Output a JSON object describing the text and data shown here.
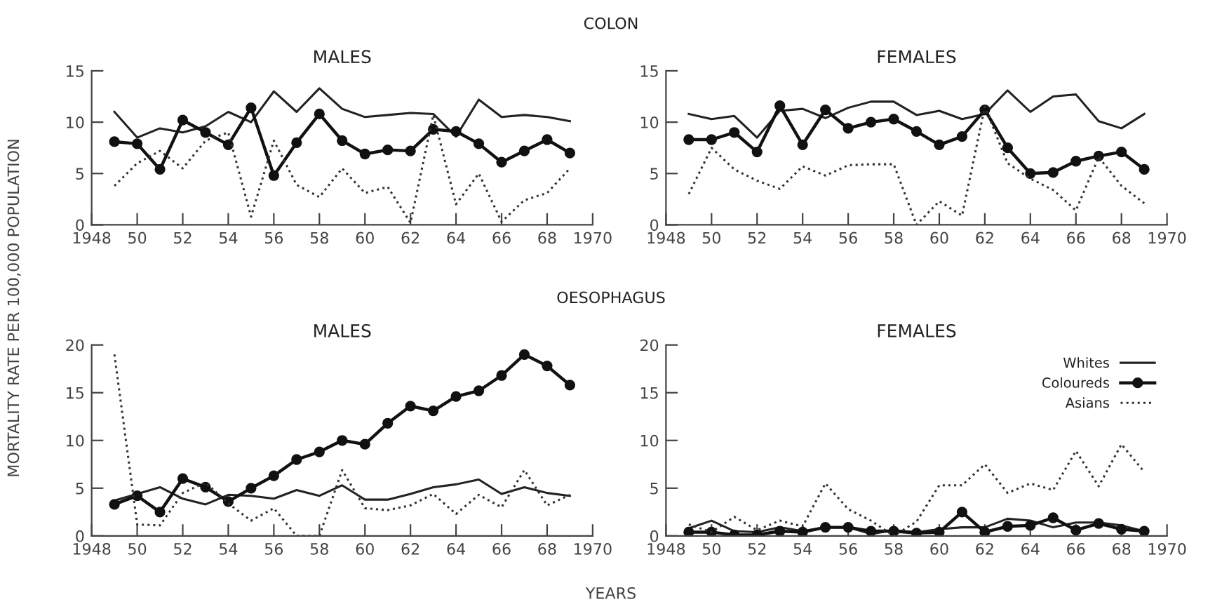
{
  "chart_data": [
    {
      "type": "line",
      "title": "MALES",
      "annotations": [
        "COLON"
      ],
      "ylabel": "MORTALITY RATE PER 100,000 POPULATION",
      "x": [
        1949,
        1950,
        1951,
        1952,
        1953,
        1954,
        1955,
        1956,
        1957,
        1958,
        1959,
        1960,
        1961,
        1962,
        1963,
        1964,
        1965,
        1966,
        1967,
        1968,
        1969
      ],
      "xlim": [
        1948,
        1970
      ],
      "xticks": [
        1948,
        {
          "value": 1950,
          "label": "50"
        },
        {
          "value": 1952,
          "label": "52"
        },
        {
          "value": 1954,
          "label": "54"
        },
        {
          "value": 1956,
          "label": "56"
        },
        {
          "value": 1958,
          "label": "58"
        },
        {
          "value": 1960,
          "label": "60"
        },
        {
          "value": 1962,
          "label": "62"
        },
        {
          "value": 1964,
          "label": "64"
        },
        {
          "value": 1966,
          "label": "66"
        },
        {
          "value": 1968,
          "label": "68"
        },
        1970
      ],
      "ylim": [
        0,
        15
      ],
      "yticks": [
        0,
        5,
        10,
        15
      ],
      "grid": false,
      "legend": false,
      "series": [
        {
          "color": "#222222",
          "line_style": "solid",
          "marker": "none",
          "values": [
            11,
            8.5,
            9.4,
            9,
            9.6,
            11,
            10,
            13,
            11,
            13.3,
            11.3,
            10.5,
            10.7,
            10.9,
            10.8,
            8.6,
            12.2,
            10.5,
            10.7,
            10.5,
            10.1
          ]
        },
        {
          "color": "#111111",
          "line_style": "solid",
          "marker": "circle",
          "values": [
            8.1,
            7.9,
            5.4,
            10.2,
            9,
            7.8,
            11.4,
            4.8,
            8,
            10.8,
            8.2,
            6.9,
            7.3,
            7.2,
            9.3,
            9.1,
            7.9,
            6.1,
            7.2,
            8.3,
            7
          ]
        },
        {
          "color": "#333333",
          "line_style": "dotted",
          "marker": "none",
          "values": [
            3.8,
            6,
            7.2,
            5.5,
            8.2,
            9,
            0.8,
            8.2,
            3.9,
            2.7,
            5.5,
            3.1,
            3.7,
            0.2,
            10.7,
            2,
            5,
            0.3,
            2.4,
            3.1,
            5.5
          ]
        }
      ]
    },
    {
      "type": "line",
      "title": "FEMALES",
      "x": [
        1949,
        1950,
        1951,
        1952,
        1953,
        1954,
        1955,
        1956,
        1957,
        1958,
        1959,
        1960,
        1961,
        1962,
        1963,
        1964,
        1965,
        1966,
        1967,
        1968,
        1969
      ],
      "xlim": [
        1948,
        1970
      ],
      "xticks": [
        1948,
        {
          "value": 1950,
          "label": "50"
        },
        {
          "value": 1952,
          "label": "52"
        },
        {
          "value": 1954,
          "label": "54"
        },
        {
          "value": 1956,
          "label": "56"
        },
        {
          "value": 1958,
          "label": "58"
        },
        {
          "value": 1960,
          "label": "60"
        },
        {
          "value": 1962,
          "label": "62"
        },
        {
          "value": 1964,
          "label": "64"
        },
        {
          "value": 1966,
          "label": "66"
        },
        {
          "value": 1968,
          "label": "68"
        },
        1970
      ],
      "ylim": [
        0,
        15
      ],
      "yticks": [
        0,
        5,
        10,
        15
      ],
      "grid": false,
      "legend": false,
      "series": [
        {
          "color": "#222222",
          "line_style": "solid",
          "marker": "none",
          "values": [
            10.8,
            10.3,
            10.6,
            8.5,
            11.1,
            11.3,
            10.4,
            11.4,
            12,
            12,
            10.7,
            11.1,
            10.3,
            10.8,
            13.1,
            11,
            12.5,
            12.7,
            10.1,
            9.4,
            10.8
          ]
        },
        {
          "color": "#111111",
          "line_style": "solid",
          "marker": "circle",
          "values": [
            8.3,
            8.3,
            9,
            7.1,
            11.6,
            7.8,
            11.2,
            9.4,
            10,
            10.3,
            9.1,
            7.8,
            8.6,
            11.2,
            7.5,
            5,
            5.1,
            6.2,
            6.7,
            7.1,
            5.4
          ]
        },
        {
          "color": "#333333",
          "line_style": "dotted",
          "marker": "none",
          "values": [
            3,
            7.5,
            5.4,
            4.3,
            3.5,
            5.7,
            4.8,
            5.8,
            5.9,
            5.9,
            0,
            2.3,
            0.9,
            11.5,
            6,
            4.5,
            3.4,
            1.4,
            6.6,
            3.8,
            2.1
          ]
        }
      ]
    },
    {
      "type": "line",
      "title": "MALES",
      "annotations": [
        "OESOPHAGUS"
      ],
      "xlabel": "YEARS",
      "x": [
        1949,
        1950,
        1951,
        1952,
        1953,
        1954,
        1955,
        1956,
        1957,
        1958,
        1959,
        1960,
        1961,
        1962,
        1963,
        1964,
        1965,
        1966,
        1967,
        1968,
        1969
      ],
      "xlim": [
        1948,
        1970
      ],
      "xticks": [
        1948,
        {
          "value": 1950,
          "label": "50"
        },
        {
          "value": 1952,
          "label": "52"
        },
        {
          "value": 1954,
          "label": "54"
        },
        {
          "value": 1956,
          "label": "56"
        },
        {
          "value": 1958,
          "label": "58"
        },
        {
          "value": 1960,
          "label": "60"
        },
        {
          "value": 1962,
          "label": "62"
        },
        {
          "value": 1964,
          "label": "64"
        },
        {
          "value": 1966,
          "label": "66"
        },
        {
          "value": 1968,
          "label": "68"
        },
        1970
      ],
      "ylim": [
        0,
        20
      ],
      "yticks": [
        0,
        5,
        10,
        15,
        20
      ],
      "grid": false,
      "legend": false,
      "series": [
        {
          "color": "#222222",
          "line_style": "solid",
          "marker": "none",
          "values": [
            3.7,
            4.4,
            5.1,
            3.9,
            3.3,
            4.3,
            4.2,
            3.9,
            4.8,
            4.2,
            5.3,
            3.8,
            3.8,
            4.4,
            5.1,
            5.4,
            5.9,
            4.4,
            5.1,
            4.5,
            4.2
          ]
        },
        {
          "color": "#111111",
          "line_style": "solid",
          "marker": "circle",
          "values": [
            3.3,
            4.2,
            2.5,
            6,
            5.1,
            3.6,
            5,
            6.3,
            8,
            8.8,
            10,
            9.6,
            11.8,
            13.6,
            13.1,
            14.6,
            15.2,
            16.8,
            19,
            17.8,
            15.8
          ]
        },
        {
          "color": "#333333",
          "line_style": "dotted",
          "marker": "none",
          "values": [
            19,
            1.2,
            1.1,
            4.5,
            5.6,
            3.4,
            1.6,
            2.9,
            0,
            0,
            6.9,
            2.9,
            2.7,
            3.2,
            4.4,
            2.3,
            4.3,
            3,
            6.9,
            3.2,
            4.3
          ]
        }
      ]
    },
    {
      "type": "line",
      "title": "FEMALES",
      "x": [
        1949,
        1950,
        1951,
        1952,
        1953,
        1954,
        1955,
        1956,
        1957,
        1958,
        1959,
        1960,
        1961,
        1962,
        1963,
        1964,
        1965,
        1966,
        1967,
        1968,
        1969
      ],
      "xlim": [
        1948,
        1970
      ],
      "xticks": [
        1948,
        {
          "value": 1950,
          "label": "50"
        },
        {
          "value": 1952,
          "label": "52"
        },
        {
          "value": 1954,
          "label": "54"
        },
        {
          "value": 1956,
          "label": "56"
        },
        {
          "value": 1958,
          "label": "58"
        },
        {
          "value": 1960,
          "label": "60"
        },
        {
          "value": 1962,
          "label": "62"
        },
        {
          "value": 1964,
          "label": "64"
        },
        {
          "value": 1966,
          "label": "66"
        },
        {
          "value": 1968,
          "label": "68"
        },
        1970
      ],
      "ylim": [
        0,
        20
      ],
      "yticks": [
        0,
        5,
        10,
        15,
        20
      ],
      "grid": false,
      "legend": "top right",
      "series": [
        {
          "name": "Whites",
          "color": "#222222",
          "line_style": "solid",
          "marker": "none",
          "values": [
            0.8,
            1.6,
            0.5,
            0.4,
            0.9,
            0.5,
            0.9,
            0.9,
            0.2,
            0.6,
            0.4,
            0.7,
            0.9,
            0.9,
            1.8,
            1.6,
            0.9,
            1.4,
            1.4,
            1.1,
            0.5
          ]
        },
        {
          "name": "Coloureds",
          "color": "#111111",
          "line_style": "solid",
          "marker": "circle",
          "values": [
            0.4,
            0.4,
            0.1,
            0.1,
            0.5,
            0.4,
            0.9,
            0.9,
            0.5,
            0.5,
            0.3,
            0.4,
            2.5,
            0.4,
            1,
            1.1,
            1.9,
            0.6,
            1.3,
            0.7,
            0.5
          ]
        },
        {
          "name": "Asians",
          "color": "#333333",
          "line_style": "dotted",
          "marker": "none",
          "values": [
            1.2,
            0.4,
            2,
            0.6,
            1.6,
            1,
            5.5,
            2.8,
            1.6,
            0,
            1.5,
            5.3,
            5.3,
            7.5,
            4.5,
            5.5,
            4.8,
            8.9,
            5.2,
            9.6,
            6.7
          ]
        }
      ]
    }
  ]
}
